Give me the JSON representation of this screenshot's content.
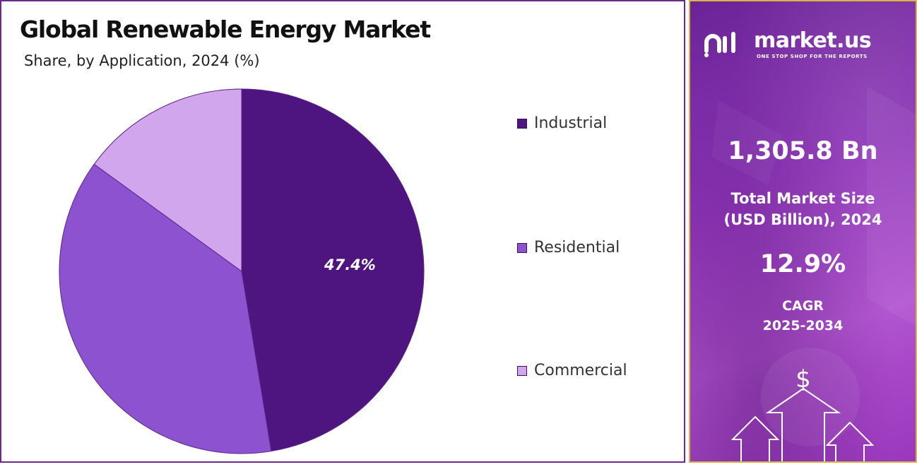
{
  "chart_data": {
    "type": "pie",
    "title": "Global Renewable Energy Market",
    "subtitle": "Share, by Application, 2024 (%)",
    "categories": [
      "Industrial",
      "Residential",
      "Commercial"
    ],
    "values": [
      47.4,
      37.6,
      15.0
    ],
    "data_labels": [
      "47.4%",
      "",
      ""
    ],
    "colors": [
      "#4e1580",
      "#8c52d0",
      "#d2a6ec"
    ],
    "legend_position": "right"
  },
  "side_panel": {
    "brand_name": "market.us",
    "brand_tagline": "ONE STOP SHOP FOR THE REPORTS",
    "market_size_value": "1,305.8 Bn",
    "market_size_label_line1": "Total Market Size",
    "market_size_label_line2": "(USD Billion), 2024",
    "cagr_value": "12.9%",
    "cagr_label_line1": "CAGR",
    "cagr_label_line2": "2025-2034",
    "currency_symbol": "$",
    "icons": [
      "brand-logo-icon",
      "dollar-icon",
      "up-arrow-icon"
    ],
    "panel_border_color": "#d9b24a"
  }
}
